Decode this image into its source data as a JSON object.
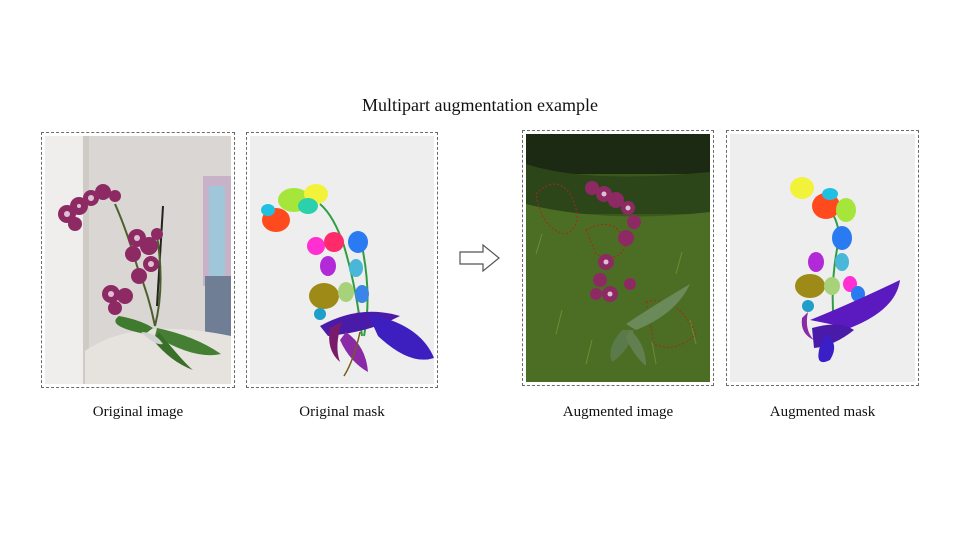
{
  "figure": {
    "title": "Multipart augmentation example",
    "panels": [
      {
        "id": "original-image",
        "caption": "Original image"
      },
      {
        "id": "original-mask",
        "caption": "Original mask"
      },
      {
        "id": "augmented-image",
        "caption": "Augmented image"
      },
      {
        "id": "augmented-mask",
        "caption": "Augmented mask"
      }
    ],
    "colors": {
      "panel_border": "#6b6b6b",
      "mask_background": "#eeeeee",
      "arrow_stroke": "#555555"
    }
  }
}
